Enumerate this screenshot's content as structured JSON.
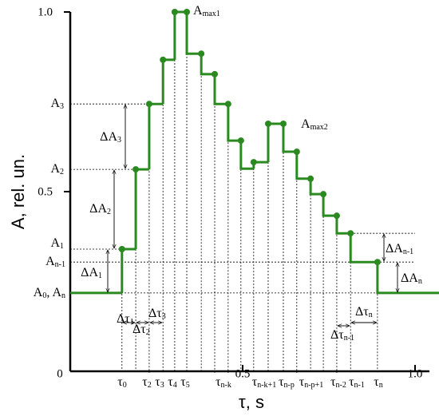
{
  "chart_data": {
    "type": "step",
    "x_label": "τ, s",
    "y_label": "A, rel. un.",
    "xlim": [
      0,
      1
    ],
    "ylim": [
      0,
      1
    ],
    "xticks": [
      0,
      0.5,
      {
        "value": 1,
        "label": "1.0"
      }
    ],
    "yticks": [
      0.5,
      {
        "value": 1,
        "label": "1.0"
      }
    ],
    "color": "#2a8a1f",
    "x": [
      0,
      0.15,
      0.19,
      0.229,
      0.269,
      0.303,
      0.338,
      0.38,
      0.419,
      0.458,
      0.495,
      0.532,
      0.574,
      0.618,
      0.657,
      0.697,
      0.734,
      0.773,
      0.813,
      0.891
    ],
    "values": [
      0.218,
      0.34,
      0.562,
      0.744,
      0.867,
      1.0,
      0.884,
      0.827,
      0.744,
      0.642,
      0.564,
      0.582,
      0.689,
      0.611,
      0.536,
      0.493,
      0.433,
      0.384,
      0.304,
      0.218
    ],
    "markers": {
      "x": [
        0.15,
        0.19,
        0.229,
        0.269,
        0.303,
        0.338,
        0.38,
        0.419,
        0.458,
        0.495,
        0.532,
        0.574,
        0.618,
        0.657,
        0.697,
        0.734,
        0.773,
        0.813,
        0.891
      ],
      "values": [
        0.34,
        0.562,
        0.744,
        0.867,
        1.0,
        1.0,
        0.884,
        0.827,
        0.744,
        0.642,
        0.582,
        0.689,
        0.689,
        0.611,
        0.536,
        0.493,
        0.433,
        0.384,
        0.304
      ]
    },
    "annotations": [
      {
        "parts": [
          {
            "t": "A",
            "sub": "3"
          }
        ]
      },
      {
        "parts": [
          {
            "t": "A",
            "sub": "2"
          }
        ]
      },
      {
        "parts": [
          {
            "t": "A",
            "sub": "1"
          }
        ]
      },
      {
        "parts": [
          {
            "t": "A",
            "sub": "n-1"
          }
        ]
      },
      {
        "parts": [
          {
            "t": "A",
            "sub": "0"
          },
          {
            "t": ", A",
            "sub": "n"
          }
        ]
      },
      {
        "parts": [
          {
            "t": "A",
            "sub": "max1"
          }
        ]
      },
      {
        "parts": [
          {
            "t": "A",
            "sub": "max2"
          }
        ]
      },
      {
        "parts": [
          {
            "t": "ΔA",
            "sub": "3"
          }
        ]
      },
      {
        "parts": [
          {
            "t": "ΔA",
            "sub": "2"
          }
        ]
      },
      {
        "parts": [
          {
            "t": "ΔA",
            "sub": "1"
          }
        ]
      },
      {
        "parts": [
          {
            "t": "ΔA",
            "sub": "n-1"
          }
        ]
      },
      {
        "parts": [
          {
            "t": "ΔA",
            "sub": "n"
          }
        ]
      },
      {
        "parts": [
          {
            "t": "Δτ",
            "sub": "1"
          }
        ]
      },
      {
        "parts": [
          {
            "t": "Δτ",
            "sub": "2"
          }
        ]
      },
      {
        "parts": [
          {
            "t": "Δτ",
            "sub": "3"
          }
        ]
      },
      {
        "parts": [
          {
            "t": "Δτ",
            "sub": "n-1"
          }
        ]
      },
      {
        "parts": [
          {
            "t": "Δτ",
            "sub": "n"
          }
        ]
      },
      {
        "parts": [
          {
            "t": "τ",
            "sub": "0"
          }
        ]
      },
      {
        "parts": [
          {
            "t": "τ",
            "sub": "2"
          }
        ]
      },
      {
        "parts": [
          {
            "t": "τ",
            "sub": "3"
          }
        ]
      },
      {
        "parts": [
          {
            "t": "τ",
            "sub": "4"
          }
        ]
      },
      {
        "parts": [
          {
            "t": "τ",
            "sub": "5"
          }
        ]
      },
      {
        "parts": [
          {
            "t": "τ",
            "sub": "n-k"
          }
        ]
      },
      {
        "parts": [
          {
            "t": "τ",
            "sub": "n-k+1"
          }
        ]
      },
      {
        "parts": [
          {
            "t": "τ",
            "sub": "n-p"
          }
        ]
      },
      {
        "parts": [
          {
            "t": "τ",
            "sub": "n-p+1"
          }
        ]
      },
      {
        "parts": [
          {
            "t": "τ",
            "sub": "n-2"
          }
        ]
      },
      {
        "parts": [
          {
            "t": "τ",
            "sub": "n-1"
          }
        ]
      },
      {
        "parts": [
          {
            "t": "τ",
            "sub": "n"
          }
        ]
      }
    ]
  }
}
